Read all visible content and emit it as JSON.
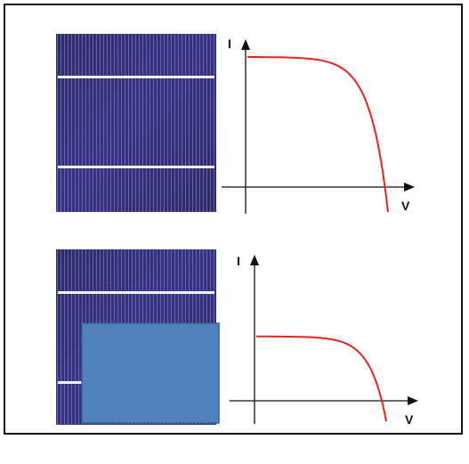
{
  "colors": {
    "frame": "#111111",
    "cell_surface": "#2f2a68",
    "cell_sheen": "#3c3aa8",
    "finger_lines": "#8e8fc6",
    "busbar": "#f4f4f8",
    "shade_fill": "#4f81bd",
    "shade_border": "#3a6393",
    "iv_curve": "#e8231c",
    "axis": "#111111"
  },
  "panels": [
    {
      "id": "unshaded",
      "shaded": false,
      "axis_labels": {
        "y": "I",
        "x": "V"
      },
      "iv_curve": {
        "relative_short_circuit_current": 1.0
      }
    },
    {
      "id": "shaded",
      "shaded": true,
      "axis_labels": {
        "y": "I",
        "x": "V"
      },
      "iv_curve": {
        "relative_short_circuit_current": 0.56
      }
    }
  ]
}
